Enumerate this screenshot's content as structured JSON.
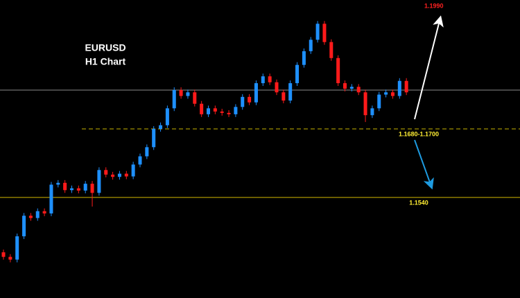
{
  "chart_data": {
    "type": "candlestick",
    "title": "EURUSD",
    "subtitle": "H1 Chart",
    "target_label": "1.1990",
    "ylim": [
      1.132,
      1.1972
    ],
    "up_color": "#1e90ff",
    "down_color": "#ff1a1a",
    "open": [
      1.142,
      1.141,
      1.1404,
      1.1455,
      1.15,
      1.1495,
      1.151,
      1.1505,
      1.1568,
      1.1572,
      1.1556,
      1.156,
      1.1555,
      1.157,
      1.155,
      1.16,
      1.159,
      1.1585,
      1.1592,
      1.1586,
      1.1612,
      1.163,
      1.165,
      1.169,
      1.1698,
      1.1735,
      1.1775,
      1.1762,
      1.177,
      1.1745,
      1.1722,
      1.1735,
      1.1728,
      1.1725,
      1.1722,
      1.1738,
      1.176,
      1.1748,
      1.179,
      1.1805,
      1.1792,
      1.177,
      1.1752,
      1.179,
      1.183,
      1.186,
      1.1885,
      1.192,
      1.188,
      1.1845,
      1.179,
      1.1778,
      1.1782,
      1.177,
      1.172,
      1.1735,
      1.1765,
      1.177,
      1.1762,
      1.1795
    ],
    "high": [
      1.1426,
      1.1416,
      1.1461,
      1.1506,
      1.1506,
      1.1516,
      1.1516,
      1.1574,
      1.1578,
      1.1578,
      1.1566,
      1.1566,
      1.1576,
      1.1576,
      1.1606,
      1.1606,
      1.1596,
      1.1598,
      1.1598,
      1.1618,
      1.1636,
      1.1656,
      1.1696,
      1.1704,
      1.1741,
      1.1781,
      1.1781,
      1.1776,
      1.1776,
      1.1751,
      1.1741,
      1.1741,
      1.1734,
      1.1731,
      1.1744,
      1.1766,
      1.1766,
      1.1796,
      1.1811,
      1.1811,
      1.1798,
      1.1776,
      1.1796,
      1.1836,
      1.1866,
      1.1891,
      1.1926,
      1.1926,
      1.1886,
      1.1851,
      1.1796,
      1.1788,
      1.1788,
      1.1776,
      1.1741,
      1.1771,
      1.1776,
      1.1776,
      1.1801,
      1.1801
    ],
    "low": [
      1.1404,
      1.1398,
      1.1398,
      1.1449,
      1.1489,
      1.1489,
      1.1499,
      1.1499,
      1.1562,
      1.155,
      1.155,
      1.1549,
      1.1549,
      1.152,
      1.1544,
      1.1584,
      1.1579,
      1.1579,
      1.158,
      1.158,
      1.1606,
      1.1624,
      1.1644,
      1.1684,
      1.1692,
      1.1729,
      1.1756,
      1.1756,
      1.1739,
      1.1716,
      1.1716,
      1.1722,
      1.1719,
      1.1716,
      1.1716,
      1.1732,
      1.1742,
      1.1742,
      1.1784,
      1.1786,
      1.1764,
      1.1746,
      1.1746,
      1.1784,
      1.1824,
      1.1854,
      1.1879,
      1.1874,
      1.1839,
      1.1784,
      1.1772,
      1.1772,
      1.1764,
      1.1705,
      1.1714,
      1.1729,
      1.1759,
      1.1756,
      1.1756,
      1.1764
    ],
    "close": [
      1.141,
      1.1404,
      1.1455,
      1.15,
      1.1495,
      1.151,
      1.1505,
      1.1568,
      1.1572,
      1.1556,
      1.156,
      1.1555,
      1.157,
      1.155,
      1.16,
      1.159,
      1.1585,
      1.1592,
      1.1586,
      1.1612,
      1.163,
      1.165,
      1.169,
      1.1698,
      1.1735,
      1.1775,
      1.1762,
      1.177,
      1.1745,
      1.1722,
      1.1735,
      1.1728,
      1.1725,
      1.1722,
      1.1738,
      1.176,
      1.1748,
      1.179,
      1.1805,
      1.1792,
      1.177,
      1.1752,
      1.179,
      1.183,
      1.186,
      1.1885,
      1.192,
      1.188,
      1.1845,
      1.179,
      1.1778,
      1.1782,
      1.177,
      1.172,
      1.1735,
      1.1765,
      1.177,
      1.1762,
      1.1795,
      1.177
    ],
    "levels": [
      {
        "value": 1.169,
        "label": "1.1680-1.1700",
        "dashed": true,
        "color": "#c8b400"
      },
      {
        "value": 1.154,
        "label": "1.1540",
        "dashed": false,
        "color": "#d4b800"
      }
    ]
  }
}
